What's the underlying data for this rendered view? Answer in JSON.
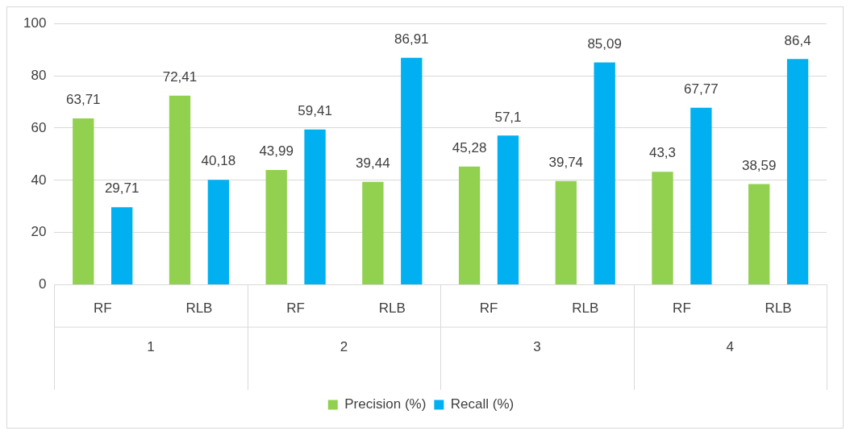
{
  "chart_data": {
    "type": "bar",
    "categories": [
      "RF",
      "RLB",
      "RF",
      "RLB",
      "RF",
      "RLB",
      "RF",
      "RLB"
    ],
    "series": [
      {
        "name": "Precision (%)",
        "color": "#92d050",
        "values": [
          63.71,
          72.41,
          43.99,
          39.44,
          45.28,
          39.74,
          43.3,
          38.59
        ],
        "value_labels": [
          "63,71",
          "72,41",
          "43,99",
          "39,44",
          "45,28",
          "39,74",
          "43,3",
          "38,59"
        ]
      },
      {
        "name": "Recall (%)",
        "color": "#00b0f0",
        "values": [
          29.71,
          40.18,
          59.41,
          86.91,
          57.1,
          85.09,
          67.77,
          86.4
        ],
        "value_labels": [
          "29,71",
          "40,18",
          "59,41",
          "86,91",
          "57,1",
          "85,09",
          "67,77",
          "86,4"
        ]
      }
    ],
    "annotations": [
      "1",
      "2",
      "3",
      "4"
    ],
    "ylim": [
      0,
      100
    ],
    "yticks": [
      0,
      20,
      40,
      60,
      80,
      100
    ],
    "grid": "y",
    "legend": "bottom"
  }
}
